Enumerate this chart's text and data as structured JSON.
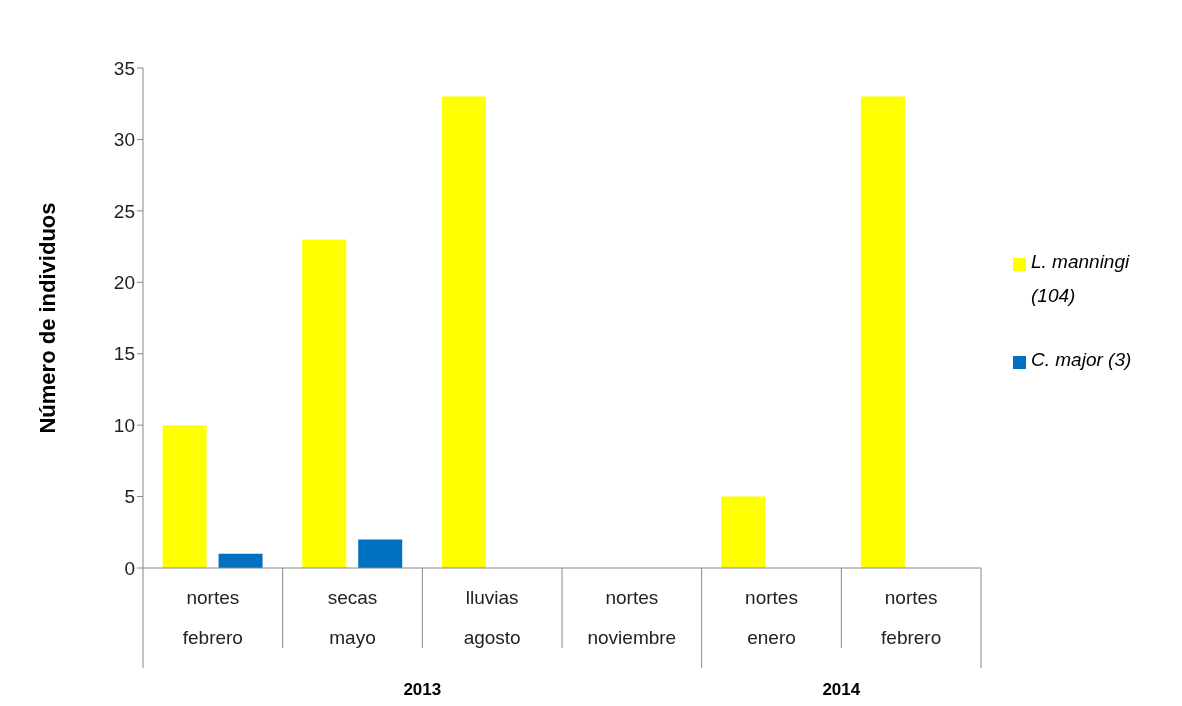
{
  "chart_data": {
    "type": "bar",
    "ylabel": "Número de individuos",
    "categories": [
      "nortes febrero",
      "secas mayo",
      "lluvias agosto",
      "nortes noviembre",
      "nortes enero",
      "nortes febrero"
    ],
    "series": [
      {
        "name": "L. manningi (104)",
        "color": "#ffff00",
        "values": [
          10,
          23,
          33,
          0,
          5,
          33
        ]
      },
      {
        "name": "C. major (3)",
        "color": "#0070c0",
        "values": [
          1,
          2,
          0,
          0,
          0,
          0
        ]
      }
    ],
    "ylim": [
      0,
      35
    ],
    "yticks": [
      0,
      5,
      10,
      15,
      20,
      25,
      30,
      35
    ],
    "legend": "right",
    "annotations": [
      "2013",
      "2014"
    ]
  }
}
